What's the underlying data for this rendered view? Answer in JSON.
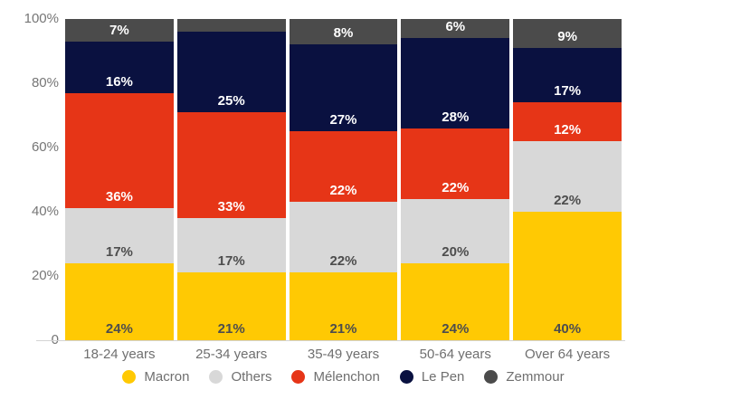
{
  "chart_data": {
    "type": "bar",
    "variant": "stacked-percentage",
    "title": "",
    "categories": [
      "18-24 years",
      "25-34 years",
      "35-49 years",
      "50-64 years",
      "Over 64 years"
    ],
    "series": [
      {
        "name": "Macron",
        "color": "#ffc903",
        "label_color": "#4d4d4d",
        "values": [
          24,
          21,
          21,
          24,
          40
        ],
        "labels": [
          "24%",
          "21%",
          "21%",
          "24%",
          "40%"
        ]
      },
      {
        "name": "Others",
        "color": "#d8d8d8",
        "label_color": "#4d4d4d",
        "values": [
          17,
          17,
          22,
          20,
          22
        ],
        "labels": [
          "17%",
          "17%",
          "22%",
          "20%",
          "22%"
        ]
      },
      {
        "name": "Mélenchon",
        "color": "#e63517",
        "label_color": "#ffffff",
        "values": [
          36,
          33,
          22,
          22,
          12
        ],
        "labels": [
          "36%",
          "33%",
          "22%",
          "22%",
          "12%"
        ]
      },
      {
        "name": "Le Pen",
        "color": "#0a1140",
        "label_color": "#ffffff",
        "values": [
          16,
          25,
          27,
          28,
          17
        ],
        "labels": [
          "16%",
          "25%",
          "27%",
          "28%",
          "17%"
        ]
      },
      {
        "name": "Zemmour",
        "color": "#4b4b4b",
        "label_color": "#ffffff",
        "values": [
          7,
          4,
          8,
          6,
          9
        ],
        "labels": [
          "7%",
          "",
          "8%",
          "6%",
          "9%"
        ]
      }
    ],
    "y_axis": {
      "min": 0,
      "max": 100,
      "ticks": [
        {
          "value": 0,
          "label": "0"
        },
        {
          "value": 20,
          "label": "20%"
        },
        {
          "value": 40,
          "label": "40%"
        },
        {
          "value": 60,
          "label": "60%"
        },
        {
          "value": 80,
          "label": "80%"
        },
        {
          "value": 100,
          "label": "100%"
        }
      ]
    },
    "legend": {
      "position": "bottom",
      "entries": [
        "Macron",
        "Others",
        "Mélenchon",
        "Le Pen",
        "Zemmour"
      ]
    },
    "grid": false,
    "colors": {
      "background": "#ffffff",
      "axis_line": "#d4d4d4",
      "tick_text": "#767676",
      "category_text": "#6f6f6f",
      "legend_text": "#6f6f6f"
    }
  }
}
